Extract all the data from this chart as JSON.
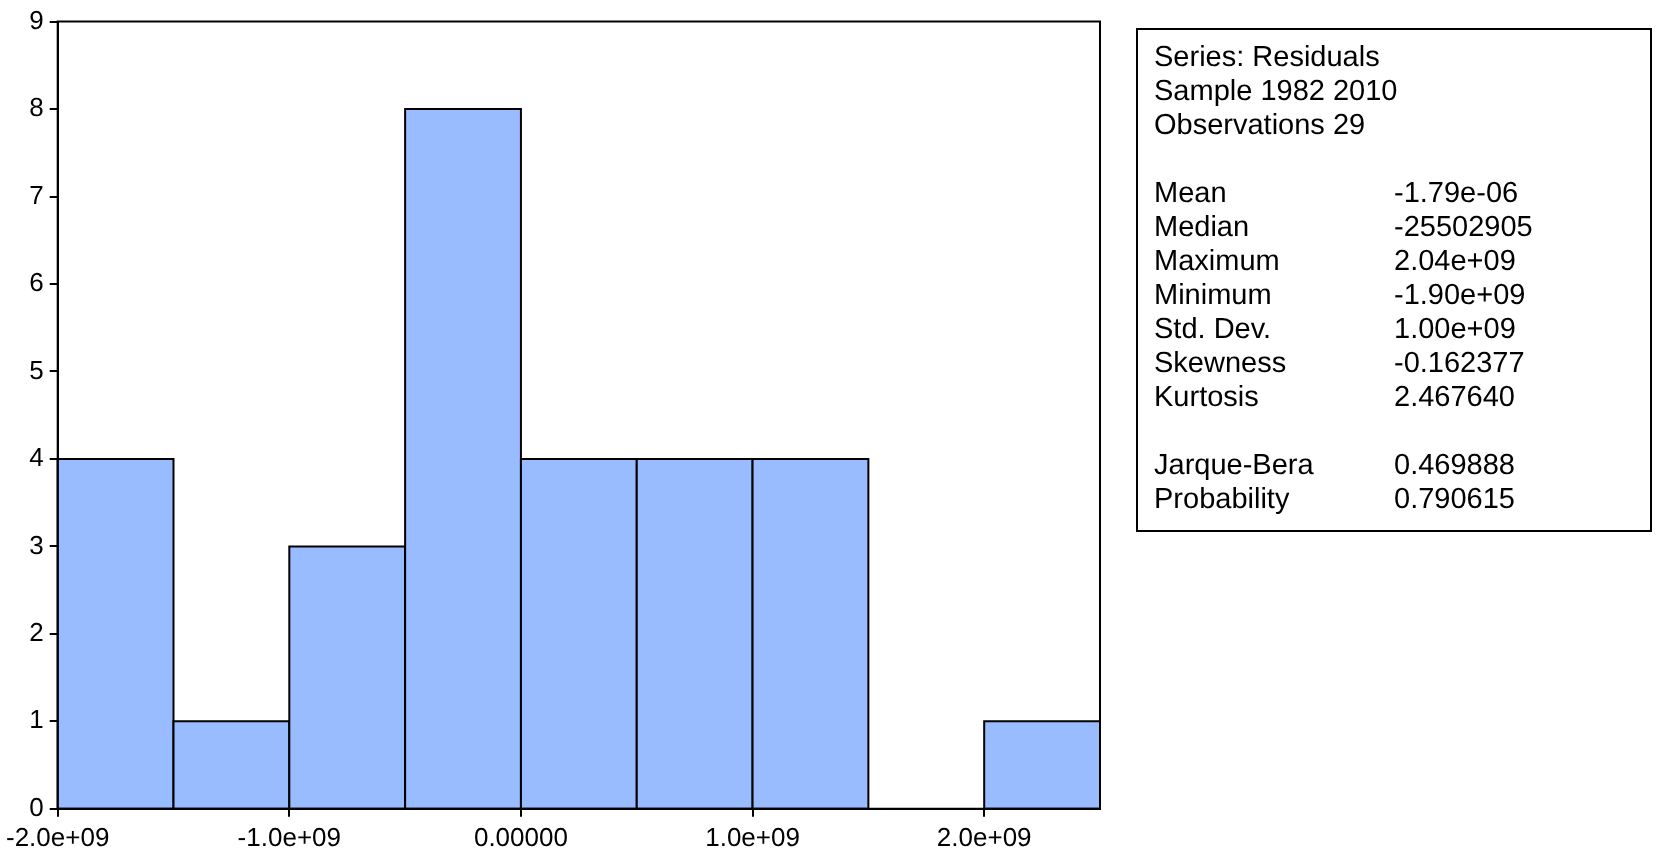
{
  "chart_data": [
    {
      "type": "histogram",
      "bins": [
        -2000000000,
        -1500000000,
        -1000000000,
        -500000000,
        0,
        500000000,
        1000000000,
        1500000000,
        2000000000,
        2500000000
      ],
      "values": [
        4,
        1,
        3,
        8,
        4,
        4,
        4,
        0,
        1
      ],
      "color": "#99bbff",
      "xlim": [
        -2000000000,
        2500000000
      ],
      "xticks": [
        {
          "value": -2000000000,
          "label": "-2.0e+09"
        },
        {
          "value": -1000000000,
          "label": "-1.0e+09"
        },
        {
          "value": 0,
          "label": "0.00000"
        },
        {
          "value": 1000000000,
          "label": "1.0e+09"
        },
        {
          "value": 2000000000,
          "label": "2.0e+09"
        }
      ],
      "ylim": [
        0,
        9
      ],
      "yticks": [
        0,
        1,
        2,
        3,
        4,
        5,
        6,
        7,
        8,
        9
      ],
      "grid": false,
      "legend": false
    },
    {
      "type": "other",
      "title": "Series: Residuals",
      "annotations": [
        "Sample 1982 2010",
        "Observations 29"
      ],
      "categories": [
        "Mean",
        "Median",
        "Maximum",
        "Minimum",
        "Std. Dev.",
        "Skewness",
        "Kurtosis",
        "Jarque-Bera",
        "Probability"
      ],
      "value_labels": [
        "-1.79e-06",
        "-25502905",
        "2.04e+09",
        "-1.90e+09",
        "1.00e+09",
        "-0.162377",
        "2.467640",
        "0.469888",
        "0.790615"
      ]
    }
  ]
}
